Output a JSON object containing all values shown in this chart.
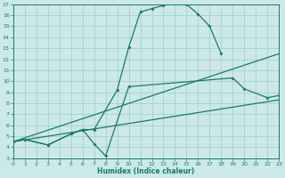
{
  "background_color": "#cce8e8",
  "line_color": "#1a7a6e",
  "grid_color": "#9ecece",
  "xlabel": "Humidex (Indice chaleur)",
  "xlim": [
    0,
    23
  ],
  "ylim": [
    3,
    17
  ],
  "xticks": [
    0,
    1,
    2,
    3,
    4,
    5,
    6,
    7,
    8,
    9,
    10,
    11,
    12,
    13,
    14,
    15,
    16,
    17,
    18,
    19,
    20,
    21,
    22,
    23
  ],
  "yticks": [
    3,
    4,
    5,
    6,
    7,
    8,
    9,
    10,
    11,
    12,
    13,
    14,
    15,
    16,
    17
  ],
  "curve1_x": [
    0,
    1,
    3,
    5,
    6,
    7,
    9,
    10,
    11,
    12,
    13,
    14,
    15,
    16,
    17,
    18
  ],
  "curve1_y": [
    4.5,
    4.7,
    4.2,
    5.2,
    5.6,
    5.6,
    9.2,
    13.1,
    16.3,
    16.6,
    16.9,
    17.1,
    17.0,
    16.1,
    15.0,
    12.5
  ],
  "curve2_x": [
    0,
    1,
    3,
    5,
    6,
    7,
    8,
    10,
    19,
    20,
    22,
    23
  ],
  "curve2_y": [
    4.5,
    4.7,
    4.2,
    5.2,
    5.6,
    4.3,
    3.2,
    9.5,
    10.3,
    9.3,
    8.5,
    8.7
  ],
  "line1_x": [
    0,
    23
  ],
  "line1_y": [
    4.5,
    12.5
  ],
  "line2_x": [
    0,
    23
  ],
  "line2_y": [
    4.5,
    8.3
  ]
}
